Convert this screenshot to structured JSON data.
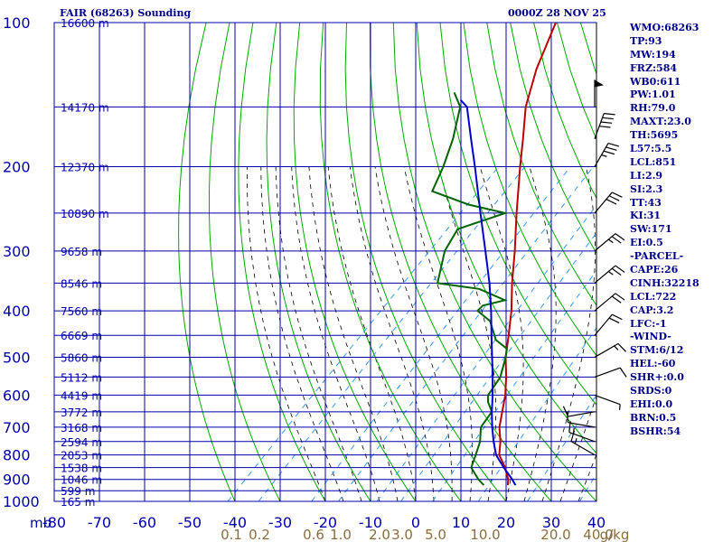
{
  "header": {
    "title": "FAIR (68263) Sounding",
    "timestamp": "0000Z 28 NOV 25"
  },
  "stats": [
    "WMO:68263",
    "TP:93",
    "MW:194",
    "FRZ:584",
    "WB0:611",
    "PW:1.01",
    "RH:79.0",
    "MAXT:23.0",
    "TH:5695",
    "L57:5.5",
    "LCL:851",
    "LI:2.9",
    "SI:2.3",
    "TT:43",
    "KI:31",
    "SW:171",
    "EI:0.5",
    "-PARCEL-",
    "CAPE:26",
    "CINH:32218",
    "LCL:722",
    "CAP:3.2",
    "LFC:-1",
    "-WIND-",
    "STM:6/12",
    "HEL:-60",
    "SHR+:0.0",
    "SRDS:0",
    "EHI:0.0",
    "BRN:0.5",
    "BSHR:54"
  ],
  "colors": {
    "grid": "#0000aa",
    "dry_adiabat": "#00aa00",
    "moist_adiabat": "#000000",
    "mixing_ratio": "#3399ff",
    "temperature": "#bb0000",
    "dewpoint": "#006400",
    "parcel": "#0000cc",
    "text": "#00008b"
  },
  "chart_data": {
    "type": "line",
    "title": "FAIR (68263) Sounding",
    "x_unit": "°C",
    "y_unit": "mb",
    "xlim": [
      -80,
      40
    ],
    "ylim": [
      1000,
      100
    ],
    "y_scale": "log",
    "pressure_labels": [
      100,
      200,
      300,
      400,
      500,
      600,
      700,
      800,
      900,
      1000
    ],
    "pressure_grid": [
      100,
      150,
      200,
      250,
      300,
      350,
      400,
      450,
      500,
      550,
      600,
      650,
      700,
      750,
      800,
      850,
      900,
      950,
      1000
    ],
    "temp_labels": [
      {
        "t": -80,
        "text": "-80"
      },
      {
        "t": -70,
        "text": "-70"
      },
      {
        "t": -60,
        "text": "-60"
      },
      {
        "t": -50,
        "text": "-50"
      },
      {
        "t": -40,
        "text": "-40"
      },
      {
        "t": -30,
        "text": "-30"
      },
      {
        "t": -20,
        "text": "-20"
      },
      {
        "t": -10,
        "text": "-10"
      },
      {
        "t": 0,
        "text": "0"
      },
      {
        "t": 10,
        "text": "10"
      },
      {
        "t": 20,
        "text": "20"
      },
      {
        "t": 30,
        "text": "30"
      },
      {
        "t": 40,
        "text": "40"
      }
    ],
    "height_labels": [
      {
        "p": 100,
        "text": "16600 m"
      },
      {
        "p": 150,
        "text": "14170 m"
      },
      {
        "p": 200,
        "text": "12370 m"
      },
      {
        "p": 250,
        "text": "10890 m"
      },
      {
        "p": 300,
        "text": "9658 m"
      },
      {
        "p": 350,
        "text": "8546 m"
      },
      {
        "p": 400,
        "text": "7560 m"
      },
      {
        "p": 450,
        "text": "6669 m"
      },
      {
        "p": 500,
        "text": "5860 m"
      },
      {
        "p": 550,
        "text": "5112 m"
      },
      {
        "p": 600,
        "text": "4419 m"
      },
      {
        "p": 650,
        "text": "3772 m"
      },
      {
        "p": 700,
        "text": "3168 m"
      },
      {
        "p": 750,
        "text": "2594 m"
      },
      {
        "p": 800,
        "text": "2053 m"
      },
      {
        "p": 850,
        "text": "1538 m"
      },
      {
        "p": 900,
        "text": "1046 m"
      },
      {
        "p": 950,
        "text": "599 m"
      },
      {
        "p": 1000,
        "text": "165 m"
      }
    ],
    "mixing_ratio_labels": [
      "0.1",
      "0.2",
      "0.6",
      "1.0",
      "2.0",
      "3.0",
      "5.0",
      "10.0",
      "20.0",
      "40.0",
      "g/kg"
    ],
    "series": [
      {
        "name": "temperature",
        "values": [
          {
            "p": 925,
            "t": 16.8
          },
          {
            "p": 900,
            "t": 15.6
          },
          {
            "p": 850,
            "t": 12.3
          },
          {
            "p": 800,
            "t": 8.2
          },
          {
            "p": 750,
            "t": 5.5
          },
          {
            "p": 700,
            "t": 2.1
          },
          {
            "p": 650,
            "t": -0.7
          },
          {
            "p": 600,
            "t": -3.7
          },
          {
            "p": 550,
            "t": -7.5
          },
          {
            "p": 500,
            "t": -12.0
          },
          {
            "p": 450,
            "t": -16.2
          },
          {
            "p": 400,
            "t": -21.0
          },
          {
            "p": 350,
            "t": -27.0
          },
          {
            "p": 300,
            "t": -33.5
          },
          {
            "p": 250,
            "t": -41.5
          },
          {
            "p": 200,
            "t": -51.0
          },
          {
            "p": 175,
            "t": -56.5
          },
          {
            "p": 150,
            "t": -63.0
          },
          {
            "p": 125,
            "t": -69.0
          },
          {
            "p": 100,
            "t": -75.0
          }
        ]
      },
      {
        "name": "dewpoint",
        "values": [
          {
            "p": 925,
            "t": 11.5
          },
          {
            "p": 900,
            "t": 9.0
          },
          {
            "p": 850,
            "t": 4.8
          },
          {
            "p": 800,
            "t": 3.0
          },
          {
            "p": 750,
            "t": 1.0
          },
          {
            "p": 700,
            "t": -2.0
          },
          {
            "p": 650,
            "t": -3.0
          },
          {
            "p": 620,
            "t": -6.0
          },
          {
            "p": 600,
            "t": -7.5
          },
          {
            "p": 550,
            "t": -8.8
          },
          {
            "p": 500,
            "t": -12.0
          },
          {
            "p": 480,
            "t": -13.6
          },
          {
            "p": 460,
            "t": -18.0
          },
          {
            "p": 420,
            "t": -23.5
          },
          {
            "p": 400,
            "t": -28.5
          },
          {
            "p": 390,
            "t": -28.5
          },
          {
            "p": 380,
            "t": -24.8
          },
          {
            "p": 360,
            "t": -33.0
          },
          {
            "p": 350,
            "t": -43.5
          },
          {
            "p": 300,
            "t": -49.0
          },
          {
            "p": 270,
            "t": -51.0
          },
          {
            "p": 250,
            "t": -44.0
          },
          {
            "p": 240,
            "t": -54.0
          },
          {
            "p": 225,
            "t": -65.0
          },
          {
            "p": 200,
            "t": -68.0
          },
          {
            "p": 175,
            "t": -72.0
          },
          {
            "p": 150,
            "t": -77.5
          },
          {
            "p": 140,
            "t": -82.0
          }
        ]
      },
      {
        "name": "parcel",
        "values": [
          {
            "p": 925,
            "t": 18.5
          },
          {
            "p": 900,
            "t": 16.5
          },
          {
            "p": 850,
            "t": 12.0
          },
          {
            "p": 800,
            "t": 7.5
          },
          {
            "p": 750,
            "t": 4.0
          },
          {
            "p": 700,
            "t": 0.5
          },
          {
            "p": 650,
            "t": -3.0
          },
          {
            "p": 600,
            "t": -6.5
          },
          {
            "p": 550,
            "t": -10.5
          },
          {
            "p": 500,
            "t": -15.0
          },
          {
            "p": 450,
            "t": -20.0
          },
          {
            "p": 400,
            "t": -25.5
          },
          {
            "p": 350,
            "t": -32.0
          },
          {
            "p": 300,
            "t": -40.0
          },
          {
            "p": 250,
            "t": -49.5
          },
          {
            "p": 200,
            "t": -61.0
          },
          {
            "p": 175,
            "t": -68.0
          },
          {
            "p": 150,
            "t": -76.0
          },
          {
            "p": 145,
            "t": -79.0
          }
        ]
      }
    ],
    "wind_barbs": [
      {
        "p": 150,
        "dir": 180,
        "spd": 50
      },
      {
        "p": 175,
        "dir": 200,
        "spd": 40
      },
      {
        "p": 200,
        "dir": 210,
        "spd": 35
      },
      {
        "p": 250,
        "dir": 220,
        "spd": 30
      },
      {
        "p": 300,
        "dir": 230,
        "spd": 25
      },
      {
        "p": 350,
        "dir": 230,
        "spd": 25
      },
      {
        "p": 400,
        "dir": 230,
        "spd": 20
      },
      {
        "p": 450,
        "dir": 220,
        "spd": 20
      },
      {
        "p": 500,
        "dir": 240,
        "spd": 15
      },
      {
        "p": 550,
        "dir": 250,
        "spd": 10
      },
      {
        "p": 600,
        "dir": 290,
        "spd": 5
      },
      {
        "p": 650,
        "dir": 80,
        "spd": 10
      },
      {
        "p": 700,
        "dir": 100,
        "spd": 10
      },
      {
        "p": 750,
        "dir": 110,
        "spd": 15
      },
      {
        "p": 800,
        "dir": 120,
        "spd": 15
      }
    ]
  }
}
